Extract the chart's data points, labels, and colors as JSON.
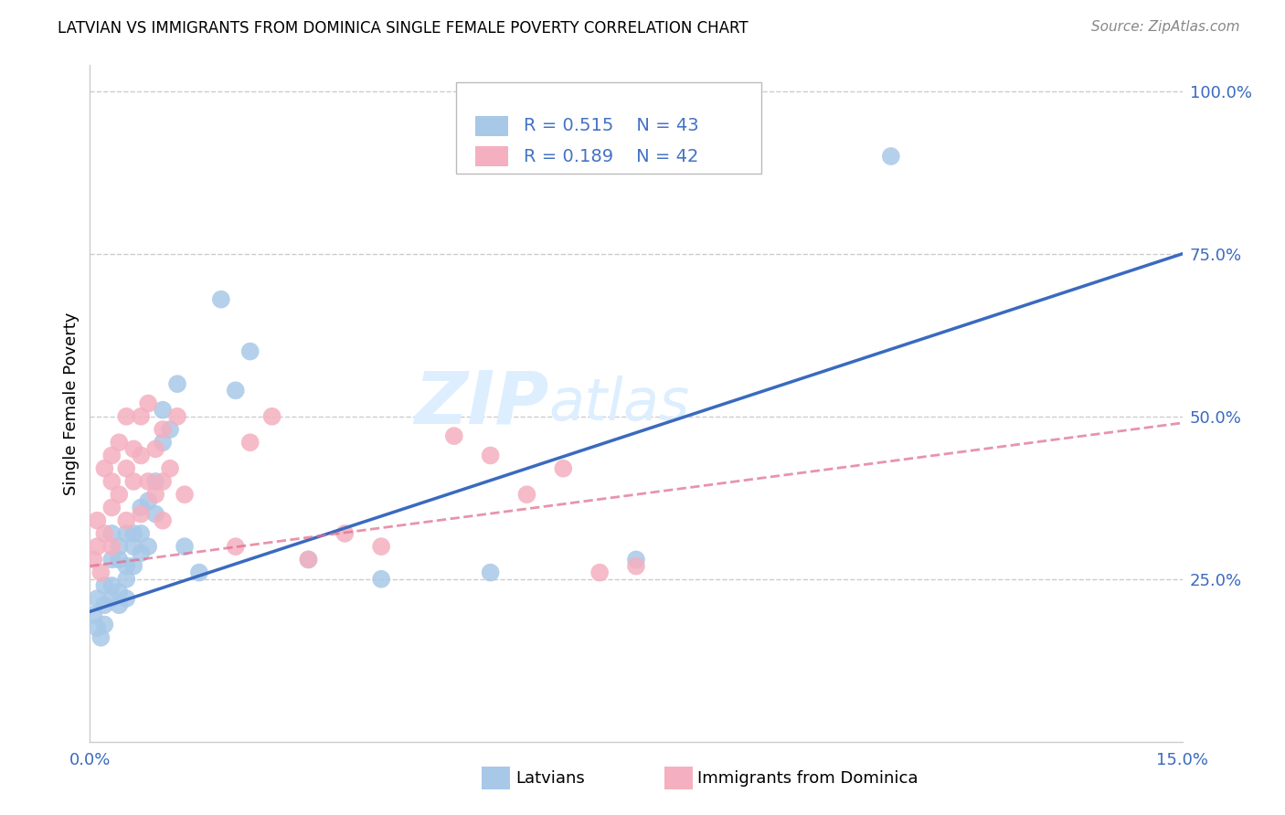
{
  "title": "LATVIAN VS IMMIGRANTS FROM DOMINICA SINGLE FEMALE POVERTY CORRELATION CHART",
  "source": "Source: ZipAtlas.com",
  "label_latvians": "Latvians",
  "label_dominica": "Immigrants from Dominica",
  "ylabel": "Single Female Poverty",
  "xlim": [
    0.0,
    0.15
  ],
  "ylim": [
    0.0,
    1.04
  ],
  "r_latvian": 0.515,
  "n_latvian": 43,
  "r_dominica": 0.189,
  "n_dominica": 42,
  "blue_scatter": "#a8c8e8",
  "blue_line": "#3a6abf",
  "pink_scatter": "#f4b0c0",
  "pink_line": "#e07090",
  "legend_text_color": "#4472c4",
  "watermark_color": "#ddeeff",
  "grid_color": "#cccccc",
  "blue_regr": [
    0.0,
    0.15,
    0.2,
    0.75
  ],
  "pink_regr": [
    0.0,
    0.15,
    0.27,
    0.49
  ],
  "latvian_x": [
    0.0005,
    0.001,
    0.001,
    0.0015,
    0.002,
    0.002,
    0.002,
    0.003,
    0.003,
    0.003,
    0.003,
    0.004,
    0.004,
    0.004,
    0.004,
    0.005,
    0.005,
    0.005,
    0.005,
    0.006,
    0.006,
    0.006,
    0.007,
    0.007,
    0.007,
    0.008,
    0.008,
    0.009,
    0.009,
    0.01,
    0.01,
    0.011,
    0.012,
    0.013,
    0.015,
    0.018,
    0.02,
    0.022,
    0.03,
    0.04,
    0.055,
    0.075,
    0.11
  ],
  "latvian_y": [
    0.195,
    0.175,
    0.22,
    0.16,
    0.21,
    0.24,
    0.18,
    0.24,
    0.28,
    0.22,
    0.32,
    0.23,
    0.28,
    0.21,
    0.3,
    0.27,
    0.32,
    0.25,
    0.22,
    0.32,
    0.3,
    0.27,
    0.36,
    0.32,
    0.29,
    0.37,
    0.3,
    0.4,
    0.35,
    0.46,
    0.51,
    0.48,
    0.55,
    0.3,
    0.26,
    0.68,
    0.54,
    0.6,
    0.28,
    0.25,
    0.26,
    0.28,
    0.9
  ],
  "dominica_x": [
    0.0005,
    0.001,
    0.001,
    0.0015,
    0.002,
    0.002,
    0.003,
    0.003,
    0.003,
    0.003,
    0.004,
    0.004,
    0.005,
    0.005,
    0.005,
    0.006,
    0.006,
    0.007,
    0.007,
    0.007,
    0.008,
    0.008,
    0.009,
    0.009,
    0.01,
    0.01,
    0.01,
    0.011,
    0.012,
    0.013,
    0.02,
    0.022,
    0.025,
    0.03,
    0.035,
    0.04,
    0.05,
    0.055,
    0.06,
    0.065,
    0.07,
    0.075
  ],
  "dominica_y": [
    0.28,
    0.3,
    0.34,
    0.26,
    0.32,
    0.42,
    0.36,
    0.4,
    0.3,
    0.44,
    0.38,
    0.46,
    0.34,
    0.42,
    0.5,
    0.4,
    0.45,
    0.35,
    0.5,
    0.44,
    0.4,
    0.52,
    0.38,
    0.45,
    0.4,
    0.48,
    0.34,
    0.42,
    0.5,
    0.38,
    0.3,
    0.46,
    0.5,
    0.28,
    0.32,
    0.3,
    0.47,
    0.44,
    0.38,
    0.42,
    0.26,
    0.27
  ]
}
